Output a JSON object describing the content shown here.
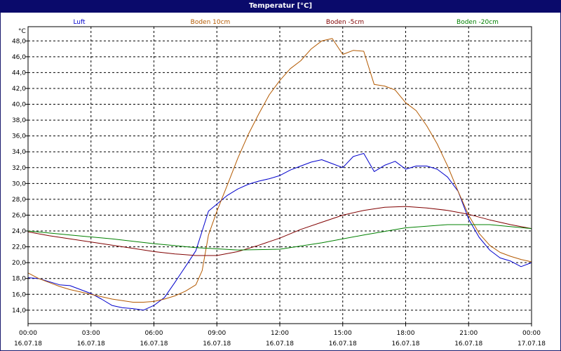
{
  "chart_data": {
    "type": "line",
    "title": "Temperatur [°C]",
    "ylabel": "°C",
    "xlabel": "",
    "ylim": [
      12.3,
      49.8
    ],
    "yticks": [
      14,
      16,
      18,
      20,
      22,
      24,
      26,
      28,
      30,
      32,
      34,
      36,
      38,
      40,
      42,
      44,
      46,
      48
    ],
    "ytick_labels": [
      "14,0",
      "16,0",
      "18,0",
      "20,0",
      "22,0",
      "24,0",
      "26,0",
      "28,0",
      "30,0",
      "32,0",
      "34,0",
      "36,0",
      "38,0",
      "40,0",
      "42,0",
      "44,0",
      "46,0",
      "48,0"
    ],
    "xlim": [
      0,
      24
    ],
    "xticks": [
      0,
      3,
      6,
      9,
      12,
      15,
      18,
      21,
      24
    ],
    "xtick_time": [
      "00:00",
      "03:00",
      "06:00",
      "09:00",
      "12:00",
      "15:00",
      "18:00",
      "21:00",
      "00:00"
    ],
    "xtick_date": [
      "16.07.18",
      "16.07.18",
      "16.07.18",
      "16.07.18",
      "16.07.18",
      "16.07.18",
      "16.07.18",
      "16.07.18",
      "17.07.18"
    ],
    "grid": true,
    "legend_placement": "top",
    "series": [
      {
        "name": "Luft",
        "color": "#0000cc",
        "points": [
          [
            0,
            18.1
          ],
          [
            0.5,
            18.0
          ],
          [
            1,
            17.6
          ],
          [
            1.5,
            17.2
          ],
          [
            2,
            17.1
          ],
          [
            2.5,
            16.6
          ],
          [
            3,
            16.1
          ],
          [
            3.5,
            15.4
          ],
          [
            4,
            14.6
          ],
          [
            4.5,
            14.3
          ],
          [
            5,
            14.2
          ],
          [
            5.5,
            14.0
          ],
          [
            6,
            14.6
          ],
          [
            6.5,
            15.6
          ],
          [
            7,
            17.5
          ],
          [
            7.5,
            19.5
          ],
          [
            8,
            21.5
          ],
          [
            8.3,
            24.0
          ],
          [
            8.6,
            26.5
          ],
          [
            9,
            27.4
          ],
          [
            9.5,
            28.5
          ],
          [
            10,
            29.3
          ],
          [
            10.5,
            29.9
          ],
          [
            11,
            30.3
          ],
          [
            11.5,
            30.6
          ],
          [
            12,
            31.0
          ],
          [
            12.5,
            31.7
          ],
          [
            13,
            32.2
          ],
          [
            13.5,
            32.7
          ],
          [
            14,
            33.0
          ],
          [
            14.5,
            32.5
          ],
          [
            15,
            32.0
          ],
          [
            15.5,
            33.4
          ],
          [
            16,
            33.8
          ],
          [
            16.5,
            31.5
          ],
          [
            17,
            32.3
          ],
          [
            17.5,
            32.8
          ],
          [
            18,
            31.8
          ],
          [
            18.5,
            32.2
          ],
          [
            19,
            32.2
          ],
          [
            19.5,
            31.8
          ],
          [
            20,
            30.8
          ],
          [
            20.5,
            29.0
          ],
          [
            21,
            25.5
          ],
          [
            21.5,
            23.2
          ],
          [
            22,
            21.6
          ],
          [
            22.5,
            20.6
          ],
          [
            23,
            20.2
          ],
          [
            23.5,
            19.5
          ],
          [
            24,
            20.0
          ]
        ]
      },
      {
        "name": "Boden 10cm",
        "color": "#b35900",
        "points": [
          [
            0,
            18.7
          ],
          [
            0.5,
            18.0
          ],
          [
            1,
            17.5
          ],
          [
            1.5,
            17.0
          ],
          [
            2,
            16.6
          ],
          [
            2.5,
            16.3
          ],
          [
            3,
            16.0
          ],
          [
            3.5,
            15.7
          ],
          [
            4,
            15.4
          ],
          [
            4.5,
            15.2
          ],
          [
            5,
            15.0
          ],
          [
            5.5,
            15.0
          ],
          [
            6,
            15.1
          ],
          [
            6.5,
            15.4
          ],
          [
            7,
            15.8
          ],
          [
            7.5,
            16.4
          ],
          [
            8,
            17.2
          ],
          [
            8.3,
            19.0
          ],
          [
            8.6,
            23.5
          ],
          [
            9,
            26.5
          ],
          [
            9.5,
            29.8
          ],
          [
            10,
            33.2
          ],
          [
            10.5,
            36.2
          ],
          [
            11,
            38.8
          ],
          [
            11.5,
            41.2
          ],
          [
            12,
            43.0
          ],
          [
            12.5,
            44.5
          ],
          [
            13,
            45.5
          ],
          [
            13.5,
            47.0
          ],
          [
            14,
            48.0
          ],
          [
            14.5,
            48.3
          ],
          [
            15,
            46.3
          ],
          [
            15.5,
            46.8
          ],
          [
            16,
            46.7
          ],
          [
            16.5,
            42.5
          ],
          [
            17,
            42.3
          ],
          [
            17.5,
            41.8
          ],
          [
            18,
            40.2
          ],
          [
            18.5,
            39.2
          ],
          [
            19,
            37.3
          ],
          [
            19.5,
            35.0
          ],
          [
            20,
            32.2
          ],
          [
            20.5,
            29.0
          ],
          [
            21,
            26.0
          ],
          [
            21.5,
            23.7
          ],
          [
            22,
            22.2
          ],
          [
            22.5,
            21.3
          ],
          [
            23,
            20.8
          ],
          [
            23.5,
            20.4
          ],
          [
            24,
            20.1
          ]
        ]
      },
      {
        "name": "Boden -5cm",
        "color": "#800000",
        "points": [
          [
            0,
            23.9
          ],
          [
            1,
            23.4
          ],
          [
            2,
            23.0
          ],
          [
            3,
            22.6
          ],
          [
            4,
            22.2
          ],
          [
            5,
            21.8
          ],
          [
            6,
            21.4
          ],
          [
            7,
            21.1
          ],
          [
            8,
            20.9
          ],
          [
            9,
            20.9
          ],
          [
            10,
            21.4
          ],
          [
            11,
            22.2
          ],
          [
            12,
            23.1
          ],
          [
            13,
            24.2
          ],
          [
            14,
            25.1
          ],
          [
            15,
            26.0
          ],
          [
            16,
            26.6
          ],
          [
            17,
            27.0
          ],
          [
            18,
            27.1
          ],
          [
            19,
            26.9
          ],
          [
            20,
            26.6
          ],
          [
            21,
            26.1
          ],
          [
            22,
            25.4
          ],
          [
            23,
            24.8
          ],
          [
            24,
            24.3
          ]
        ]
      },
      {
        "name": "Boden -20cm",
        "color": "#008000",
        "points": [
          [
            0,
            24.0
          ],
          [
            2,
            23.5
          ],
          [
            4,
            23.0
          ],
          [
            6,
            22.4
          ],
          [
            8,
            21.9
          ],
          [
            10,
            21.6
          ],
          [
            12,
            21.7
          ],
          [
            14,
            22.5
          ],
          [
            16,
            23.5
          ],
          [
            18,
            24.4
          ],
          [
            20,
            24.8
          ],
          [
            22,
            24.8
          ],
          [
            24,
            24.3
          ]
        ]
      }
    ]
  }
}
